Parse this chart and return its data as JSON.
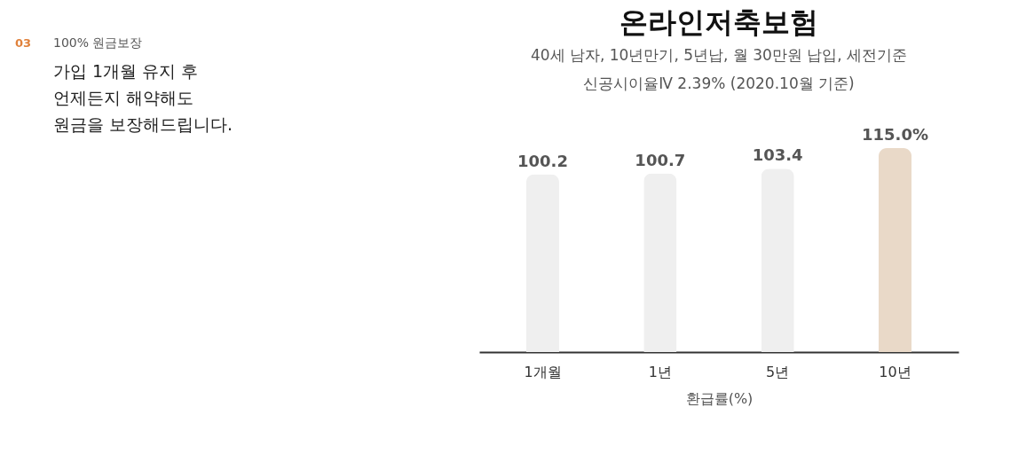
{
  "chart_data": [
    {
      "type": "other",
      "title": "100% 원금보장",
      "annotations": [
        "03",
        "가입 1개월 유지 후\n언제든지 해약해도\n원금을 보장해드립니다."
      ]
    },
    {
      "type": "bar",
      "title": "온라인저축보험",
      "subtitle": "40세 남자, 10년만기, 5년납, 월 30만원 납입, 세전기준\n신공시이율Ⅳ 2.39% (2020.10월 기준)",
      "categories": [
        "1개월",
        "1년",
        "5년",
        "10년"
      ],
      "values": [
        100.2,
        100.7,
        103.4,
        115.0
      ],
      "value_labels": [
        "100.2",
        "100.7",
        "103.4",
        "115.0%"
      ],
      "colors": [
        "#efefef",
        "#efefef",
        "#efefef",
        "#e9d9c8"
      ],
      "xlabel": "환급률(%)"
    }
  ]
}
